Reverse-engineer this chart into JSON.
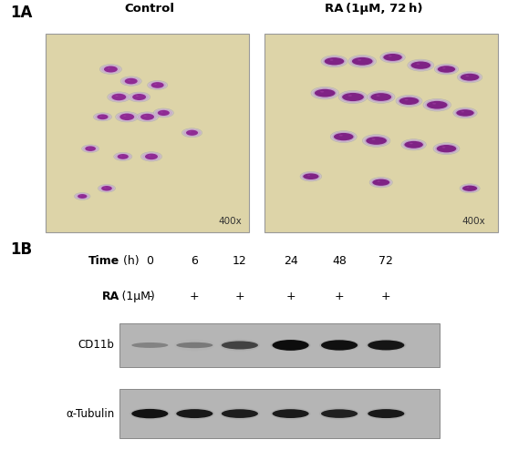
{
  "panel_A_label": "1A",
  "panel_B_label": "1B",
  "control_label": "Control",
  "ra_label": "RA (1μM, 72 h)",
  "magnification": "400x",
  "time_points": [
    "0",
    "6",
    "12",
    "24",
    "48",
    "72"
  ],
  "ra_values": [
    "-",
    "+",
    "+",
    "+",
    "+",
    "+"
  ],
  "cd11b_label": "CD11b",
  "tubulin_label": "α-Tubulin",
  "bg_color": "#ffffff",
  "cell_bg": "#ddd4a8",
  "wb_bg": "#b8b8b8",
  "cd11b_intensities": [
    0.08,
    0.15,
    0.55,
    0.97,
    0.9,
    0.84
  ],
  "tubulin_intensities": [
    0.9,
    0.82,
    0.78,
    0.8,
    0.76,
    0.82
  ],
  "left_cells": [
    [
      0.32,
      0.82,
      0.048,
      0.032,
      0
    ],
    [
      0.42,
      0.76,
      0.046,
      0.03,
      0
    ],
    [
      0.36,
      0.68,
      0.05,
      0.034,
      0
    ],
    [
      0.46,
      0.68,
      0.048,
      0.032,
      0
    ],
    [
      0.55,
      0.74,
      0.044,
      0.03,
      0
    ],
    [
      0.4,
      0.58,
      0.05,
      0.034,
      0
    ],
    [
      0.5,
      0.58,
      0.048,
      0.032,
      0
    ],
    [
      0.58,
      0.6,
      0.044,
      0.028,
      0
    ],
    [
      0.28,
      0.58,
      0.04,
      0.026,
      0
    ],
    [
      0.22,
      0.42,
      0.038,
      0.025,
      0
    ],
    [
      0.72,
      0.5,
      0.044,
      0.028,
      0
    ],
    [
      0.38,
      0.38,
      0.04,
      0.026,
      0
    ],
    [
      0.52,
      0.38,
      0.046,
      0.03,
      0
    ],
    [
      0.3,
      0.22,
      0.038,
      0.025,
      0
    ],
    [
      0.18,
      0.18,
      0.035,
      0.022,
      0
    ]
  ],
  "right_cells": [
    [
      0.3,
      0.86,
      0.055,
      0.04,
      1
    ],
    [
      0.42,
      0.86,
      0.058,
      0.042,
      1
    ],
    [
      0.55,
      0.88,
      0.052,
      0.038,
      1
    ],
    [
      0.67,
      0.84,
      0.055,
      0.04,
      1
    ],
    [
      0.78,
      0.82,
      0.05,
      0.036,
      1
    ],
    [
      0.88,
      0.78,
      0.052,
      0.038,
      1
    ],
    [
      0.26,
      0.7,
      0.058,
      0.042,
      1
    ],
    [
      0.38,
      0.68,
      0.06,
      0.044,
      1
    ],
    [
      0.5,
      0.68,
      0.058,
      0.042,
      1
    ],
    [
      0.62,
      0.66,
      0.055,
      0.04,
      1
    ],
    [
      0.74,
      0.64,
      0.058,
      0.042,
      1
    ],
    [
      0.86,
      0.6,
      0.05,
      0.036,
      1
    ],
    [
      0.34,
      0.48,
      0.055,
      0.04,
      1
    ],
    [
      0.48,
      0.46,
      0.058,
      0.042,
      1
    ],
    [
      0.64,
      0.44,
      0.052,
      0.038,
      1
    ],
    [
      0.78,
      0.42,
      0.055,
      0.04,
      1
    ],
    [
      0.2,
      0.28,
      0.045,
      0.032,
      1
    ],
    [
      0.5,
      0.25,
      0.048,
      0.035,
      1
    ],
    [
      0.88,
      0.22,
      0.042,
      0.03,
      1
    ]
  ]
}
